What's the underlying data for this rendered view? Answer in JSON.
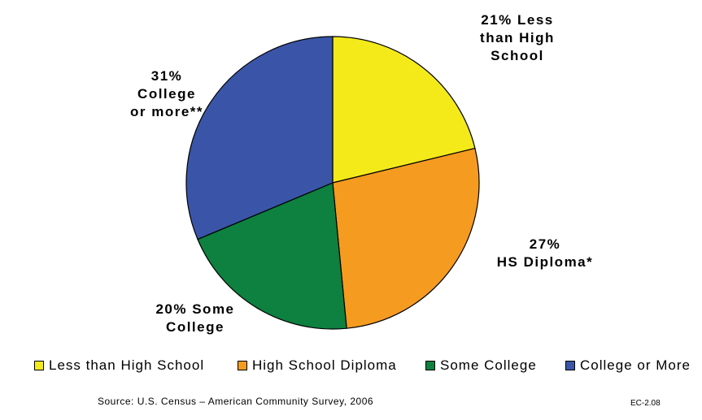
{
  "title": "",
  "chart_data": {
    "type": "pie",
    "title": "",
    "slices": [
      {
        "name": "Less than High School",
        "value": 21,
        "label": "21% Less\nthan High\nSchool",
        "color": "#F4EA1A"
      },
      {
        "name": "High School Diploma",
        "value": 27,
        "label": "27%\nHS Diploma*",
        "color": "#F59B20"
      },
      {
        "name": "Some College",
        "value": 20,
        "label": "20% Some\nCollege",
        "color": "#0E8040"
      },
      {
        "name": "College or More",
        "value": 31,
        "label": "31%\nCollege\nor more**",
        "color": "#3A55A8"
      }
    ],
    "start_angle_deg": 0,
    "direction": "clockwise",
    "legend": {
      "position": "bottom"
    }
  },
  "source": "Source: U.S. Census – American Community Survey, 2006",
  "code": "EC-2.08"
}
